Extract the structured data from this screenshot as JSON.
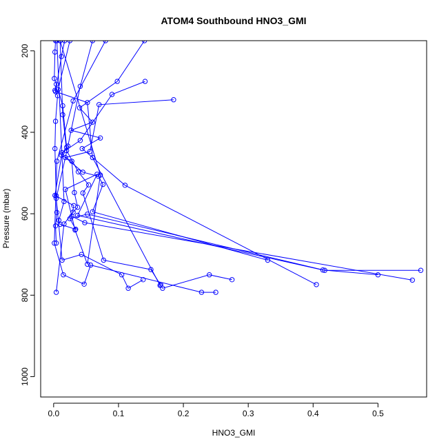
{
  "chart_data": {
    "type": "line",
    "title": "ATOM4 Southbound HNO3_GMI",
    "xlabel": "HNO3_GMI",
    "ylabel": "Pressure (mbar)",
    "xlim": [
      -0.02,
      0.575
    ],
    "ylim": [
      1050,
      175
    ],
    "y_reversed": true,
    "grid": false,
    "xticks": [
      0.0,
      0.1,
      0.2,
      0.3,
      0.4,
      0.5
    ],
    "xtick_labels": [
      "0.0",
      "0.1",
      "0.2",
      "0.3",
      "0.4",
      "0.5"
    ],
    "yticks": [
      200,
      400,
      600,
      800,
      1000
    ],
    "ytick_labels": [
      "200",
      "400",
      "600",
      "800",
      "1000"
    ],
    "line_color": "#0000ff",
    "marker": "open-circle",
    "series": [
      {
        "x": [
          0.003,
          0.002,
          0.001,
          0.004,
          0.002,
          0.006,
          0.003,
          0.002,
          0.004,
          0.005,
          0.003,
          0.004
        ],
        "y": [
          175,
          203,
          268,
          282,
          297,
          310,
          373,
          440,
          556,
          597,
          630,
          672
        ]
      },
      {
        "x": [
          0.025,
          0.007,
          0.014,
          0.02,
          0.012,
          0.028,
          0.032,
          0.037,
          0.03,
          0.016,
          0.004
        ],
        "y": [
          175,
          295,
          335,
          437,
          456,
          471,
          548,
          584,
          596,
          625,
          793
        ]
      },
      {
        "x": [
          0.14,
          0.098,
          0.04,
          0.06,
          0.027,
          0.072,
          0.044,
          0.11,
          0.405
        ],
        "y": [
          175,
          275,
          340,
          375,
          395,
          414,
          440,
          530,
          774
        ]
      },
      {
        "x": [
          0.185,
          0.07,
          0.056,
          0.018,
          0.045,
          0.069,
          0.076,
          0.06,
          0.33
        ],
        "y": [
          320,
          332,
          447,
          462,
          498,
          508,
          528,
          595,
          714
        ]
      },
      {
        "x": [
          0.141,
          0.09,
          0.041,
          0.013,
          0.002,
          0.031,
          0.028,
          0.048,
          0.553
        ],
        "y": [
          275,
          307,
          420,
          450,
          555,
          580,
          606,
          622,
          763
        ]
      },
      {
        "x": [
          0.01,
          0.072,
          0.052,
          0.033,
          0.018,
          0.067,
          0.037,
          0.415,
          0.5
        ],
        "y": [
          175,
          505,
          724,
          640,
          540,
          503,
          604,
          738,
          750
        ]
      },
      {
        "x": [
          0.005,
          0.016,
          0.008,
          0.01,
          0.034,
          0.025,
          0.052,
          0.418,
          0.566
        ],
        "y": [
          175,
          570,
          616,
          626,
          638,
          612,
          601,
          739,
          739
        ]
      },
      {
        "x": [
          0.01,
          0.014,
          0.02,
          0.038,
          0.054,
          0.045,
          0.077,
          0.15,
          0.168,
          0.24,
          0.275
        ],
        "y": [
          175,
          357,
          445,
          497,
          529,
          549,
          714,
          737,
          783,
          750,
          762
        ]
      },
      {
        "x": [
          0.06,
          0.041,
          0.022,
          0.004,
          0.013,
          0.043,
          0.105,
          0.115,
          0.138
        ],
        "y": [
          175,
          287,
          434,
          562,
          714,
          700,
          750,
          783,
          762
        ]
      },
      {
        "x": [
          0.08,
          0.03,
          0.005,
          0.001,
          0.015,
          0.047,
          0.057,
          0.228,
          0.25
        ],
        "y": [
          175,
          323,
          471,
          672,
          750,
          773,
          726,
          793,
          793
        ]
      },
      {
        "x": [
          0.017,
          0.012,
          0.003,
          0.052,
          0.06,
          0.164,
          0.165
        ],
        "y": [
          175,
          214,
          300,
          327,
          462,
          776,
          774
        ]
      }
    ]
  }
}
